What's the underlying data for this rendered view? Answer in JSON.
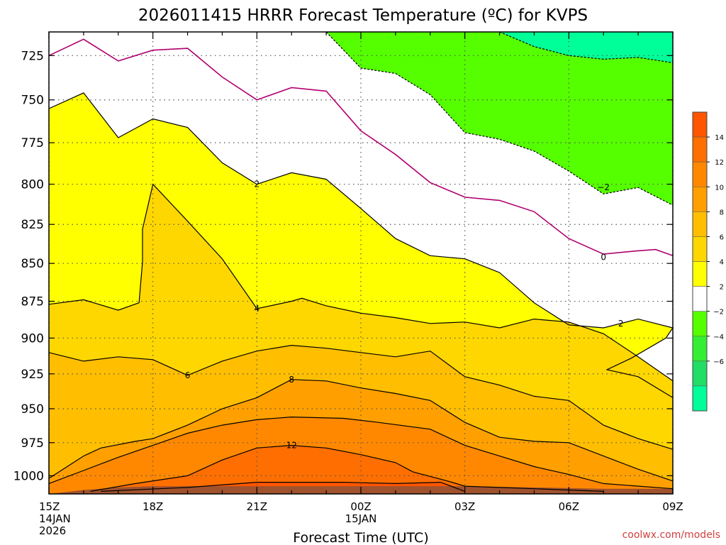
{
  "chart_data": {
    "type": "heatmap",
    "title": "2026011415 HRRR Forecast Temperature (ºC) for KVPS",
    "xlabel": "Forecast Time (UTC)",
    "ylabel": "",
    "credit": "coolwx.com/models",
    "x_ticks": [
      {
        "hour": 0,
        "lines": [
          "15Z",
          "14JAN",
          "2026"
        ]
      },
      {
        "hour": 3,
        "lines": [
          "18Z"
        ]
      },
      {
        "hour": 6,
        "lines": [
          "21Z"
        ]
      },
      {
        "hour": 9,
        "lines": [
          "00Z",
          "15JAN"
        ]
      },
      {
        "hour": 12,
        "lines": [
          "03Z"
        ]
      },
      {
        "hour": 15,
        "lines": [
          "06Z"
        ]
      },
      {
        "hour": 18,
        "lines": [
          "09Z"
        ]
      }
    ],
    "xlim": [
      0,
      18
    ],
    "y_ticks": [
      "725",
      "750",
      "775",
      "800",
      "825",
      "850",
      "875",
      "900",
      "925",
      "950",
      "975",
      "1000"
    ],
    "ylim": [
      1014,
      712
    ],
    "y_scale": "log-pressure",
    "grid": true,
    "colorbar": {
      "placement": "right",
      "bins": [
        {
          "from": 14,
          "to": 16,
          "color": "#ff5500"
        },
        {
          "from": 12,
          "to": 14,
          "color": "#ff6e00"
        },
        {
          "from": 10,
          "to": 12,
          "color": "#ff8800"
        },
        {
          "from": 8,
          "to": 10,
          "color": "#ffa000"
        },
        {
          "from": 6,
          "to": 8,
          "color": "#ffbe00"
        },
        {
          "from": 4,
          "to": 6,
          "color": "#ffd700"
        },
        {
          "from": 2,
          "to": 4,
          "color": "#ffff00"
        },
        {
          "from": -2,
          "to": 2,
          "color": "#ffffff"
        },
        {
          "from": -4,
          "to": -2,
          "color": "#55ff00"
        },
        {
          "from": -6,
          "to": -4,
          "color": "#33ee33"
        },
        {
          "from": -8,
          "to": -6,
          "color": "#22dd66"
        },
        {
          "from": -10,
          "to": -8,
          "color": "#00ff99"
        }
      ],
      "tick_labels": [
        "14",
        "12",
        "10",
        "8",
        "6",
        "4",
        "2",
        "−2",
        "−4",
        "−6"
      ]
    },
    "contour_labels": [
      {
        "text": "2",
        "hour": 6.0,
        "p": 800
      },
      {
        "text": "4",
        "hour": 6.0,
        "p": 880
      },
      {
        "text": "6",
        "hour": 4.0,
        "p": 926
      },
      {
        "text": "8",
        "hour": 7.0,
        "p": 929
      },
      {
        "text": "12",
        "hour": 7.0,
        "p": 977
      },
      {
        "text": "−2",
        "hour": 16.0,
        "p": 802
      },
      {
        "text": "0",
        "hour": 16.0,
        "p": 846
      },
      {
        "text": "2",
        "hour": 16.5,
        "p": 890
      }
    ],
    "contours": [
      {
        "level": 14,
        "color": "#ff6400",
        "line": "solid",
        "points": [
          [
            1.5,
            1012
          ],
          [
            4,
            1009
          ],
          [
            6,
            1005
          ],
          [
            8.5,
            1005
          ],
          [
            10,
            1006
          ],
          [
            11.3,
            1005
          ],
          [
            12,
            1012
          ]
        ]
      },
      {
        "level": 12,
        "color": "#ff7a00",
        "line": "solid",
        "points": [
          [
            1.2,
            1012
          ],
          [
            2.5,
            1006
          ],
          [
            4,
            1000
          ],
          [
            5,
            988
          ],
          [
            6,
            979
          ],
          [
            7,
            977
          ],
          [
            8,
            979
          ],
          [
            9,
            984
          ],
          [
            10,
            990
          ],
          [
            10.5,
            997
          ],
          [
            11.5,
            1004
          ],
          [
            12,
            1008
          ],
          [
            14,
            1010
          ],
          [
            16,
            1012
          ]
        ]
      },
      {
        "level": 10,
        "color": "#ff9400",
        "line": "solid",
        "points": [
          [
            0,
            1006
          ],
          [
            1,
            996
          ],
          [
            2,
            986
          ],
          [
            3,
            977
          ],
          [
            4,
            968
          ],
          [
            5,
            962
          ],
          [
            6,
            958
          ],
          [
            7,
            956
          ],
          [
            8.5,
            957
          ],
          [
            9.5,
            960
          ],
          [
            11,
            965
          ],
          [
            12,
            977
          ],
          [
            13,
            985
          ],
          [
            14,
            993
          ],
          [
            15,
            999
          ],
          [
            16,
            1006
          ],
          [
            18,
            1010
          ]
        ]
      },
      {
        "level": 8,
        "color": "#ffaf00",
        "line": "solid",
        "points": [
          [
            0,
            1002
          ],
          [
            1,
            985
          ],
          [
            1.5,
            979
          ],
          [
            2.5,
            974
          ],
          [
            3,
            972
          ],
          [
            4,
            962
          ],
          [
            5,
            950
          ],
          [
            6,
            942
          ],
          [
            7,
            929
          ],
          [
            8,
            930
          ],
          [
            9,
            935
          ],
          [
            10,
            939
          ],
          [
            11,
            944
          ],
          [
            12,
            960
          ],
          [
            13,
            971
          ],
          [
            14,
            974
          ],
          [
            15,
            975
          ],
          [
            16,
            985
          ],
          [
            17,
            995
          ],
          [
            18,
            1004
          ]
        ]
      },
      {
        "level": 6,
        "color": "#ffca00",
        "line": "solid",
        "points": [
          [
            0,
            910
          ],
          [
            1,
            916
          ],
          [
            2,
            913
          ],
          [
            3,
            915
          ],
          [
            4,
            926
          ],
          [
            5,
            916
          ],
          [
            6,
            909
          ],
          [
            7,
            905
          ],
          [
            8,
            907
          ],
          [
            9,
            910
          ],
          [
            10,
            913
          ],
          [
            11,
            909
          ],
          [
            12,
            927
          ],
          [
            13,
            933
          ],
          [
            14,
            941
          ],
          [
            15,
            944
          ],
          [
            16,
            962
          ],
          [
            17,
            972
          ],
          [
            18,
            980
          ]
        ]
      },
      {
        "level": 4,
        "color": "#ffe600",
        "line": "solid",
        "points": [
          [
            0,
            877
          ],
          [
            1,
            874
          ],
          [
            2,
            881
          ],
          [
            2.6,
            876
          ],
          [
            2.7,
            849
          ],
          [
            2.7,
            828
          ],
          [
            3,
            800
          ],
          [
            4,
            823
          ],
          [
            5,
            847
          ],
          [
            6,
            880
          ],
          [
            7,
            875
          ],
          [
            7.3,
            873
          ],
          [
            8,
            878
          ],
          [
            9,
            883
          ],
          [
            10,
            886
          ],
          [
            11,
            890
          ],
          [
            12,
            889
          ],
          [
            13,
            893
          ],
          [
            14,
            887
          ],
          [
            15,
            889
          ],
          [
            16,
            897
          ],
          [
            17,
            913
          ],
          [
            18,
            930
          ]
        ]
      },
      {
        "level": 2,
        "color": "#fff200",
        "line": "solid",
        "points": [
          [
            0,
            755
          ],
          [
            1,
            746
          ],
          [
            2,
            772
          ],
          [
            3,
            761
          ],
          [
            4,
            766
          ],
          [
            5,
            787
          ],
          [
            6,
            800
          ],
          [
            7,
            793
          ],
          [
            8,
            797
          ],
          [
            9,
            815
          ],
          [
            10,
            834
          ],
          [
            11,
            845
          ],
          [
            12,
            847
          ],
          [
            13,
            856
          ],
          [
            14,
            876
          ],
          [
            15,
            891
          ],
          [
            16,
            893
          ],
          [
            17,
            887
          ],
          [
            18,
            893
          ],
          [
            17.8,
            900
          ],
          [
            16.8,
            914
          ],
          [
            16.1,
            922
          ],
          [
            17,
            927
          ],
          [
            18,
            942
          ]
        ]
      },
      {
        "level": 0,
        "color": "#b0006f",
        "line": "solid",
        "points": [
          [
            0,
            725
          ],
          [
            1,
            716
          ],
          [
            2,
            728
          ],
          [
            3,
            722
          ],
          [
            4,
            721
          ],
          [
            5,
            737
          ],
          [
            6,
            750
          ],
          [
            7,
            743
          ],
          [
            8,
            745
          ],
          [
            9,
            768
          ],
          [
            10,
            782
          ],
          [
            11,
            799
          ],
          [
            12,
            808
          ],
          [
            13,
            810
          ],
          [
            14,
            817
          ],
          [
            15,
            834
          ],
          [
            16,
            844
          ],
          [
            16.9,
            842
          ],
          [
            17.5,
            841
          ],
          [
            18,
            845
          ]
        ]
      },
      {
        "level": -2,
        "color": "#000000",
        "line": "dashed",
        "points": [
          [
            8,
            712
          ],
          [
            9,
            732
          ],
          [
            10,
            735
          ],
          [
            11,
            747
          ],
          [
            12,
            769
          ],
          [
            13,
            773
          ],
          [
            14,
            780
          ],
          [
            15,
            792
          ],
          [
            16,
            806
          ],
          [
            17,
            802
          ],
          [
            18,
            813
          ]
        ]
      },
      {
        "level": -4,
        "color": "#000000",
        "line": "dashed",
        "points": [
          [
            13,
            712
          ],
          [
            14,
            720
          ],
          [
            15,
            725
          ],
          [
            16,
            727
          ],
          [
            17,
            726
          ],
          [
            18,
            729
          ]
        ]
      }
    ],
    "ground": {
      "color": "#a0522d",
      "points": [
        [
          0,
          1014
        ],
        [
          1,
          1011
        ],
        [
          2,
          1009
        ],
        [
          3,
          1008
        ],
        [
          5,
          1008
        ],
        [
          8,
          1008
        ],
        [
          10,
          1008
        ],
        [
          12,
          1008
        ],
        [
          14,
          1009
        ],
        [
          16,
          1010
        ],
        [
          18,
          1010
        ]
      ]
    }
  }
}
